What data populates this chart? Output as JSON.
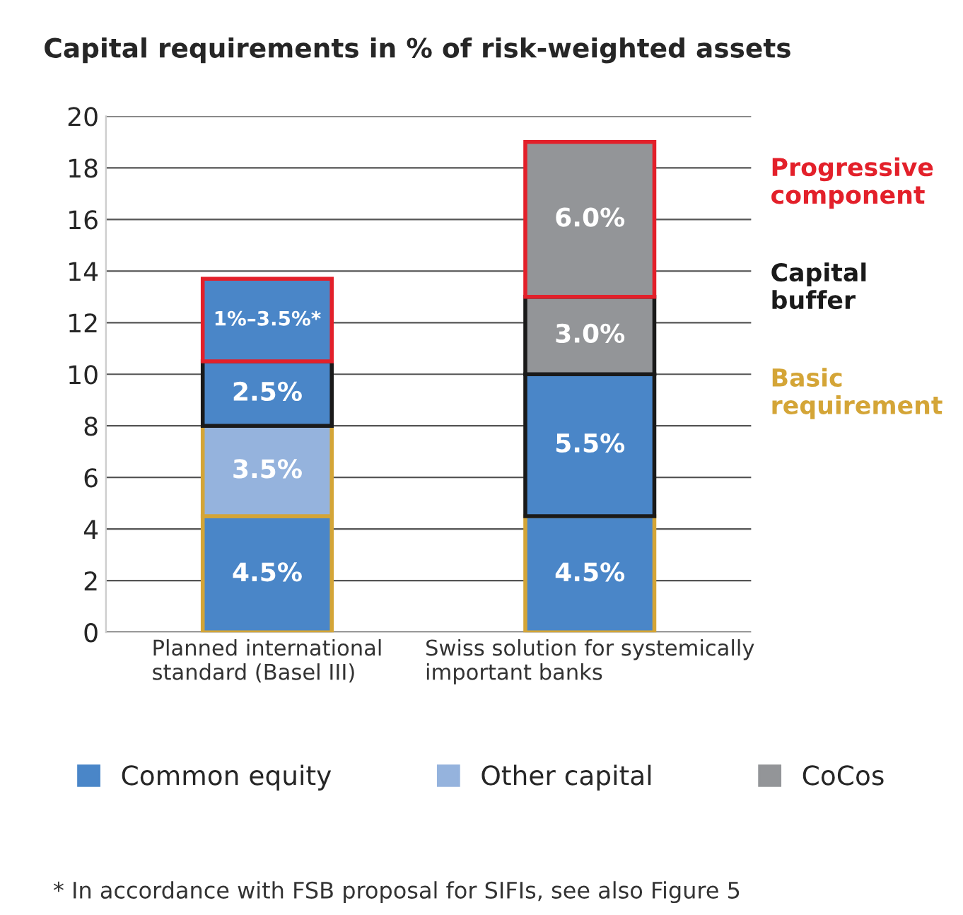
{
  "chart_data": {
    "type": "bar",
    "stacked": true,
    "title": "Capital requirements in % of risk-weighted assets",
    "categories": [
      "Planned international\nstandard (Basel III)",
      "Swiss solution for systemically\nimportant banks"
    ],
    "series": [
      {
        "name": "Common equity",
        "color": "#4a86c8",
        "values": [
          4.5,
          4.5
        ],
        "value_labels": [
          "4.5%",
          "4.5%"
        ]
      },
      {
        "name": "Other capital",
        "color": "#95b3dd",
        "values": [
          3.5,
          null
        ],
        "value_labels": [
          "3.5%",
          null
        ]
      },
      {
        "color": "#4a86c8",
        "values": [
          2.5,
          5.5
        ],
        "value_labels": [
          "2.5%",
          "5.5%"
        ]
      },
      {
        "name": "CoCos",
        "color": "#939598",
        "values": [
          null,
          3.0
        ],
        "value_labels": [
          null,
          "3.0%"
        ]
      },
      {
        "colors": [
          "#4a86c8",
          "#939598"
        ],
        "values": [
          3.2,
          6.0
        ],
        "value_labels": [
          null,
          "6.0%"
        ]
      }
    ],
    "ylim": [
      0,
      20
    ],
    "yticks": [
      0,
      2,
      4,
      6,
      8,
      10,
      12,
      14,
      16,
      18,
      20
    ],
    "grid": "y",
    "legend": "bottom",
    "annotations": [
      "1%–3.5%*",
      "Progressive\ncomponent",
      "Capital\nbuffer",
      "Basic\nrequirement",
      "* In accordance with FSB proposal for SIFIs, see also Figure 5"
    ]
  }
}
